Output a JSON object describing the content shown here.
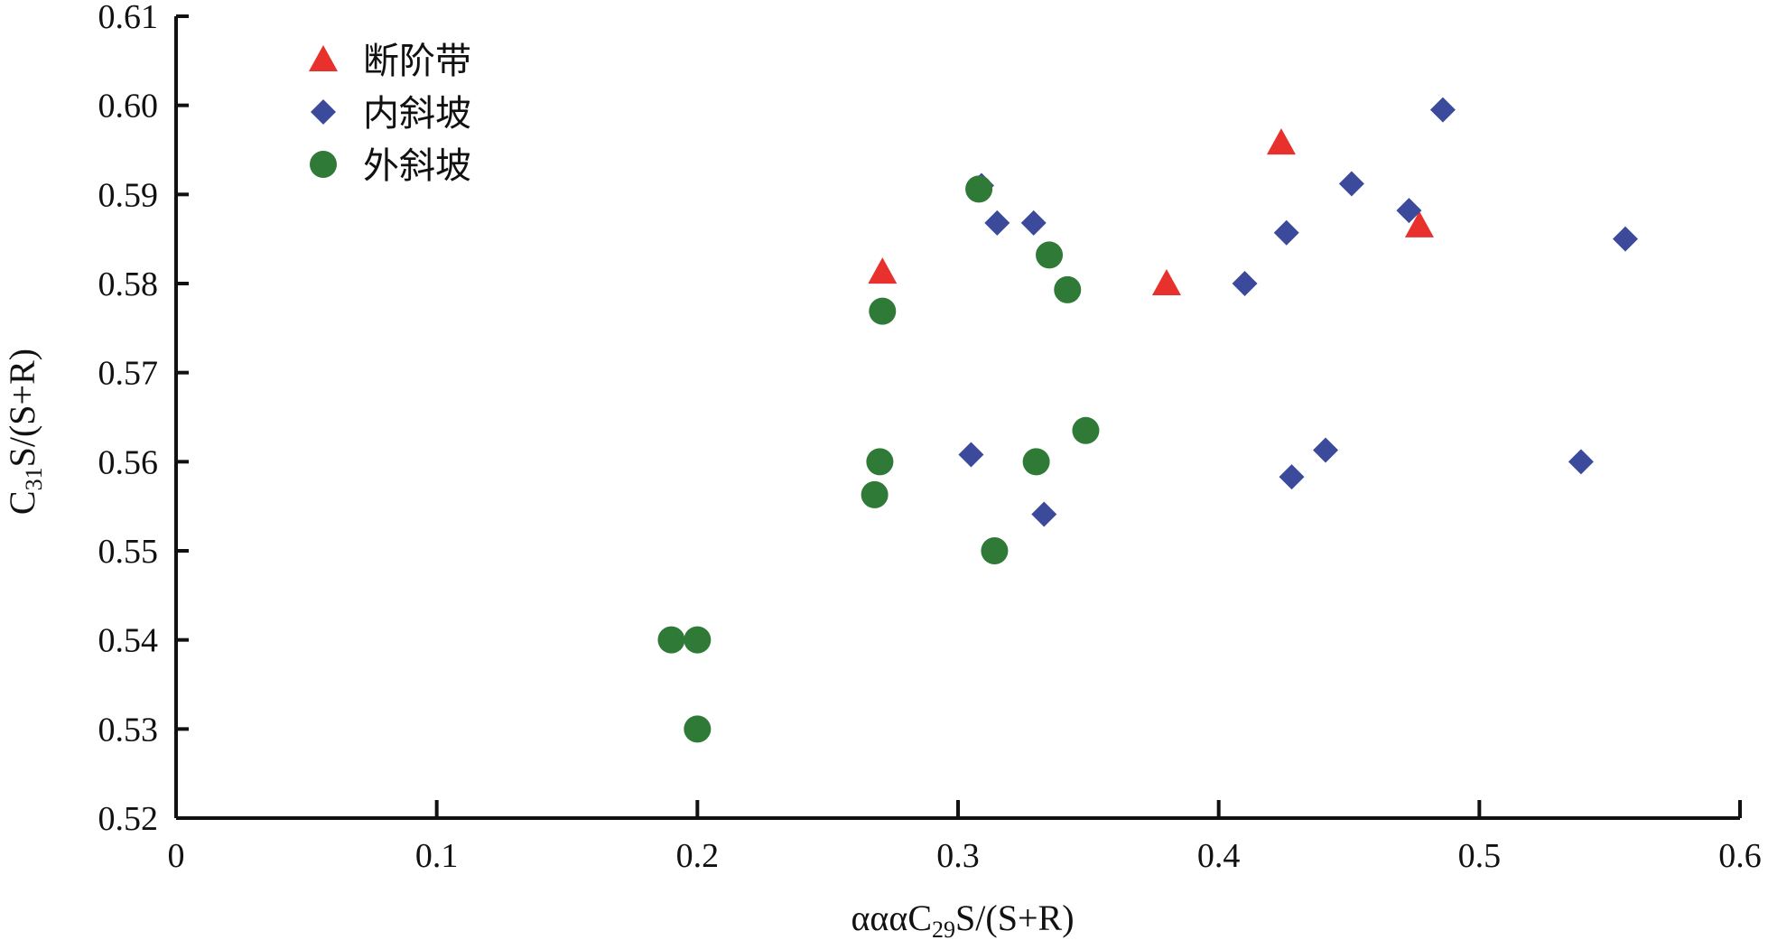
{
  "chart_data": {
    "type": "scatter",
    "title": "",
    "xlabel": {
      "prefix": "αααC",
      "sub": "29",
      "suffix": "S/(S+R)"
    },
    "ylabel": {
      "prefix": "C",
      "sub": "31",
      "suffix": "S/(S+R)"
    },
    "xlim": [
      0,
      0.6
    ],
    "ylim": [
      0.52,
      0.61
    ],
    "x_ticks": [
      "0",
      "0.1",
      "0.2",
      "0.3",
      "0.4",
      "0.5",
      "0.6"
    ],
    "y_ticks": [
      "0.52",
      "0.53",
      "0.54",
      "0.55",
      "0.56",
      "0.57",
      "0.58",
      "0.59",
      "0.60",
      "0.61"
    ],
    "grid": false,
    "legend_position": "top-left",
    "series": [
      {
        "name": "断阶带",
        "marker": "triangle",
        "color": "#e8302c",
        "points": [
          [
            0.271,
            0.5813
          ],
          [
            0.38,
            0.58
          ],
          [
            0.424,
            0.5958
          ],
          [
            0.477,
            0.5865
          ]
        ]
      },
      {
        "name": "内斜坡",
        "marker": "diamond",
        "color": "#3c4a9c",
        "points": [
          [
            0.309,
            0.591
          ],
          [
            0.315,
            0.5868
          ],
          [
            0.329,
            0.5868
          ],
          [
            0.41,
            0.58
          ],
          [
            0.426,
            0.5857
          ],
          [
            0.451,
            0.5912
          ],
          [
            0.473,
            0.5882
          ],
          [
            0.486,
            0.5995
          ],
          [
            0.556,
            0.585
          ],
          [
            0.305,
            0.5608
          ],
          [
            0.333,
            0.5541
          ],
          [
            0.428,
            0.5583
          ],
          [
            0.441,
            0.5613
          ],
          [
            0.539,
            0.56
          ]
        ]
      },
      {
        "name": "外斜坡",
        "marker": "circle",
        "color": "#2e7a36",
        "points": [
          [
            0.308,
            0.5906
          ],
          [
            0.335,
            0.5832
          ],
          [
            0.342,
            0.5793
          ],
          [
            0.271,
            0.5769
          ],
          [
            0.27,
            0.56
          ],
          [
            0.268,
            0.5563
          ],
          [
            0.33,
            0.56
          ],
          [
            0.349,
            0.5635
          ],
          [
            0.314,
            0.55
          ],
          [
            0.19,
            0.54
          ],
          [
            0.2,
            0.54
          ],
          [
            0.2,
            0.53
          ]
        ]
      }
    ]
  }
}
